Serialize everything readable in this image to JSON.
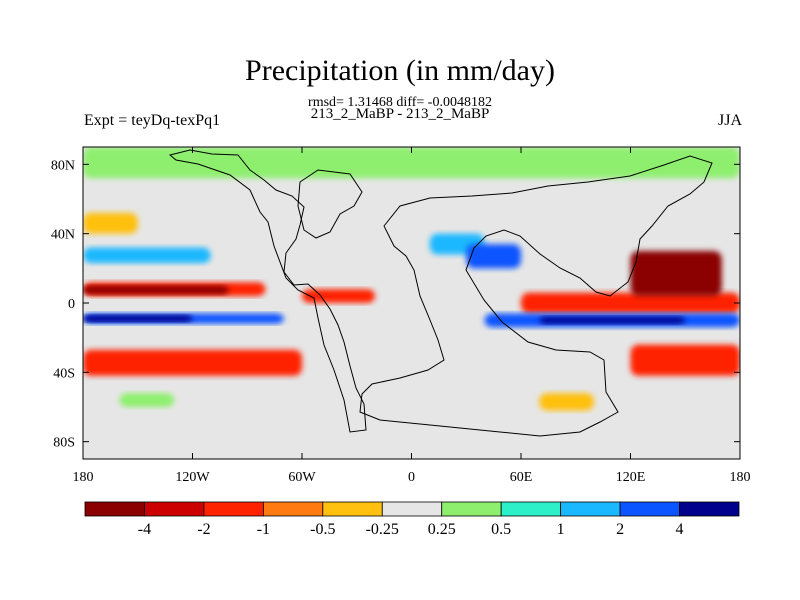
{
  "chart_data": {
    "type": "heatmap",
    "title": "Precipitation (in mm/day)",
    "stats_text": "rmsd= 1.31468  diff= -0.0048182",
    "case_text": "213_2_MaBP - 213_2_MaBP",
    "left_label": "Expt = teyDq-texPq1",
    "right_label": "JJA",
    "xlim": [
      -180,
      180
    ],
    "ylim": [
      -90,
      90
    ],
    "x_ticks": [
      {
        "value": -180,
        "label": "180"
      },
      {
        "value": -120,
        "label": "120W"
      },
      {
        "value": -60,
        "label": "60W"
      },
      {
        "value": 0,
        "label": "0"
      },
      {
        "value": 60,
        "label": "60E"
      },
      {
        "value": 120,
        "label": "120E"
      },
      {
        "value": 180,
        "label": "180"
      }
    ],
    "y_ticks": [
      {
        "value": 80,
        "label": "80N"
      },
      {
        "value": 40,
        "label": "40N"
      },
      {
        "value": 0,
        "label": "0"
      },
      {
        "value": -40,
        "label": "40S"
      },
      {
        "value": -80,
        "label": "80S"
      }
    ],
    "colorbar": {
      "colors": [
        "#8b0000",
        "#cc0000",
        "#ff2200",
        "#ff7a10",
        "#ffc010",
        "#e6e6e6",
        "#8eef6e",
        "#2ef0c8",
        "#1ab8ff",
        "#0a55ff",
        "#00008c"
      ],
      "levels": [
        "-4",
        "-2",
        "-1",
        "-0.5",
        "-0.25",
        "0.25",
        "0.5",
        "1",
        "2",
        "4"
      ]
    },
    "fields": [
      {
        "lon0": -180,
        "lon1": 180,
        "lat0": -90,
        "lat1": 90,
        "level": 5
      },
      {
        "lon0": -180,
        "lon1": -150,
        "lat0": 40,
        "lat1": 52,
        "level": 4
      },
      {
        "lon0": -180,
        "lon1": -110,
        "lat0": 23,
        "lat1": 32,
        "level": 8
      },
      {
        "lon0": -180,
        "lon1": -80,
        "lat0": 4,
        "lat1": 12,
        "level": 2
      },
      {
        "lon0": -180,
        "lon1": -100,
        "lat0": 5,
        "lat1": 10,
        "level": 0
      },
      {
        "lon0": -180,
        "lon1": -70,
        "lat0": -12,
        "lat1": -6,
        "level": 9
      },
      {
        "lon0": -180,
        "lon1": -120,
        "lat0": -11,
        "lat1": -7,
        "level": 10
      },
      {
        "lon0": -180,
        "lon1": -60,
        "lat0": -42,
        "lat1": -27,
        "level": 2
      },
      {
        "lon0": -160,
        "lon1": -130,
        "lat0": -60,
        "lat1": -52,
        "level": 6
      },
      {
        "lon0": -60,
        "lon1": -20,
        "lat0": 0,
        "lat1": 8,
        "level": 2
      },
      {
        "lon0": 10,
        "lon1": 40,
        "lat0": 28,
        "lat1": 40,
        "level": 8
      },
      {
        "lon0": 30,
        "lon1": 60,
        "lat0": 20,
        "lat1": 34,
        "level": 9
      },
      {
        "lon0": 60,
        "lon1": 180,
        "lat0": -6,
        "lat1": 6,
        "level": 2
      },
      {
        "lon0": 120,
        "lon1": 170,
        "lat0": 4,
        "lat1": 30,
        "level": 0
      },
      {
        "lon0": 40,
        "lon1": 180,
        "lat0": -14,
        "lat1": -6,
        "level": 9
      },
      {
        "lon0": 70,
        "lon1": 150,
        "lat0": -12,
        "lat1": -8,
        "level": 10
      },
      {
        "lon0": 120,
        "lon1": 180,
        "lat0": -42,
        "lat1": -24,
        "level": 2
      },
      {
        "lon0": 70,
        "lon1": 100,
        "lat0": -62,
        "lat1": -52,
        "level": 4
      },
      {
        "lon0": -180,
        "lon1": 180,
        "lat0": 72,
        "lat1": 90,
        "level": 6
      }
    ]
  }
}
